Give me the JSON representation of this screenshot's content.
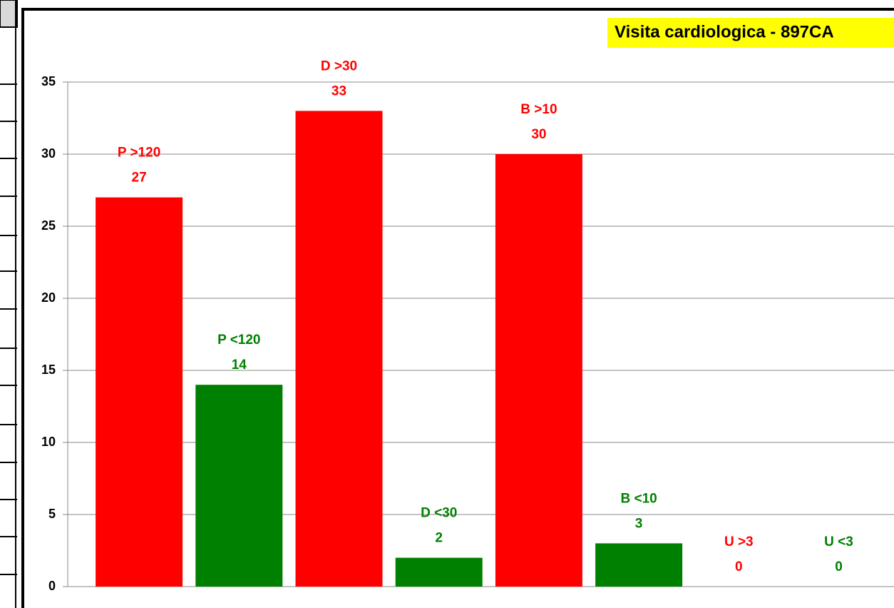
{
  "chart_data": {
    "type": "bar",
    "title": "Visita cardiologica - 897CA",
    "categories": [
      "P >120",
      "P <120",
      "D >30",
      "D <30",
      "B >10",
      "B <10",
      "U >3",
      "U <3"
    ],
    "values": [
      27,
      14,
      33,
      2,
      30,
      3,
      0,
      0
    ],
    "colors": [
      "#ff0000",
      "#008000",
      "#ff0000",
      "#008000",
      "#ff0000",
      "#008000",
      "#ff0000",
      "#008000"
    ],
    "ylim": [
      0,
      35
    ],
    "yticks": [
      0,
      5,
      10,
      15,
      20,
      25,
      30,
      35
    ],
    "grid": true
  }
}
